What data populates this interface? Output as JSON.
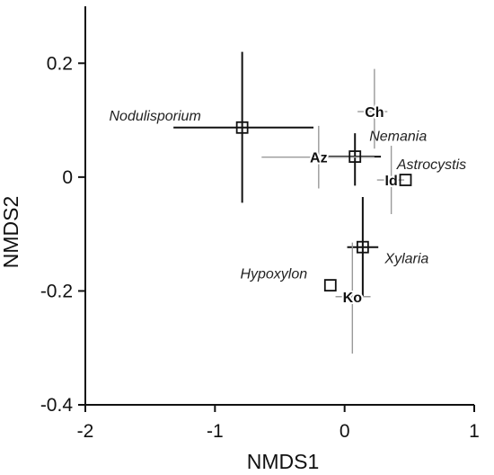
{
  "chart_data": {
    "type": "scatter",
    "title": "",
    "xlabel": "NMDS1",
    "ylabel": "NMDS2",
    "xlim": [
      -2,
      1
    ],
    "ylim": [
      -0.4,
      0.3
    ],
    "x_ticks": [
      {
        "value": -2,
        "label": "-2"
      },
      {
        "value": -1,
        "label": "-1"
      },
      {
        "value": 0,
        "label": "0"
      },
      {
        "value": 1,
        "label": "1"
      }
    ],
    "y_ticks": [
      {
        "value": 0.2,
        "label": "0.2"
      },
      {
        "value": 0,
        "label": "0"
      },
      {
        "value": -0.2,
        "label": "-0.2"
      },
      {
        "value": -0.4,
        "label": "-0.4"
      }
    ],
    "grid": false,
    "series": [
      {
        "marker": "square",
        "points": [
          {
            "label": "Nodulisporium",
            "x": -0.79,
            "y": 0.087,
            "label_style": "taxon",
            "label_dx": -97,
            "label_dy": 0.02
          },
          {
            "label": "Nemania",
            "x": 0.08,
            "y": 0.036,
            "label_style": "taxon",
            "label_dx": 48,
            "label_dy": 0.036
          },
          {
            "label": "Astrocystis",
            "x": 0.47,
            "y": -0.005,
            "label_style": "taxon",
            "label_dx": 29,
            "label_dy": 0.027
          },
          {
            "label": "Xylaria",
            "x": 0.14,
            "y": -0.123,
            "label_style": "taxon",
            "label_dx": 49,
            "label_dy": -0.02
          },
          {
            "label": "Hypoxylon",
            "x": -0.11,
            "y": -0.19,
            "label_style": "taxon",
            "label_dx": -63,
            "label_dy": 0.02
          }
        ]
      }
    ],
    "error_bars": [
      {
        "x": -0.79,
        "y": 0.087,
        "x_low": -1.32,
        "x_high": -0.24,
        "y_low": -0.045,
        "y_high": 0.22,
        "color": "#111111"
      },
      {
        "x": 0.08,
        "y": 0.036,
        "x_low": -0.23,
        "x_high": 0.28,
        "y_low": -0.015,
        "y_high": 0.077,
        "color": "#111111"
      },
      {
        "x": 0.14,
        "y": -0.123,
        "x_low": 0.02,
        "x_high": 0.26,
        "y_low": -0.21,
        "y_high": -0.035,
        "color": "#111111"
      },
      {
        "x": -0.2,
        "y": 0.035,
        "x_low": -0.64,
        "x_high": 0.23,
        "y_low": -0.02,
        "y_high": 0.09,
        "color": "#9a9a9a"
      },
      {
        "x": 0.23,
        "y": 0.115,
        "x_low": 0.1,
        "x_high": 0.33,
        "y_low": 0.05,
        "y_high": 0.19,
        "color": "#9a9a9a"
      },
      {
        "x": 0.36,
        "y": -0.005,
        "x_low": 0.25,
        "x_high": 0.46,
        "y_low": -0.065,
        "y_high": 0.055,
        "color": "#9a9a9a"
      },
      {
        "x": 0.06,
        "y": -0.21,
        "x_low": -0.07,
        "x_high": 0.2,
        "y_low": -0.31,
        "y_high": -0.115,
        "color": "#9a9a9a"
      }
    ],
    "site_labels": [
      {
        "label": "Az",
        "x": -0.2,
        "y": 0.035
      },
      {
        "label": "Ch",
        "x": 0.23,
        "y": 0.115
      },
      {
        "label": "Id",
        "x": 0.36,
        "y": -0.005
      },
      {
        "label": "Ko",
        "x": 0.06,
        "y": -0.21
      }
    ]
  }
}
